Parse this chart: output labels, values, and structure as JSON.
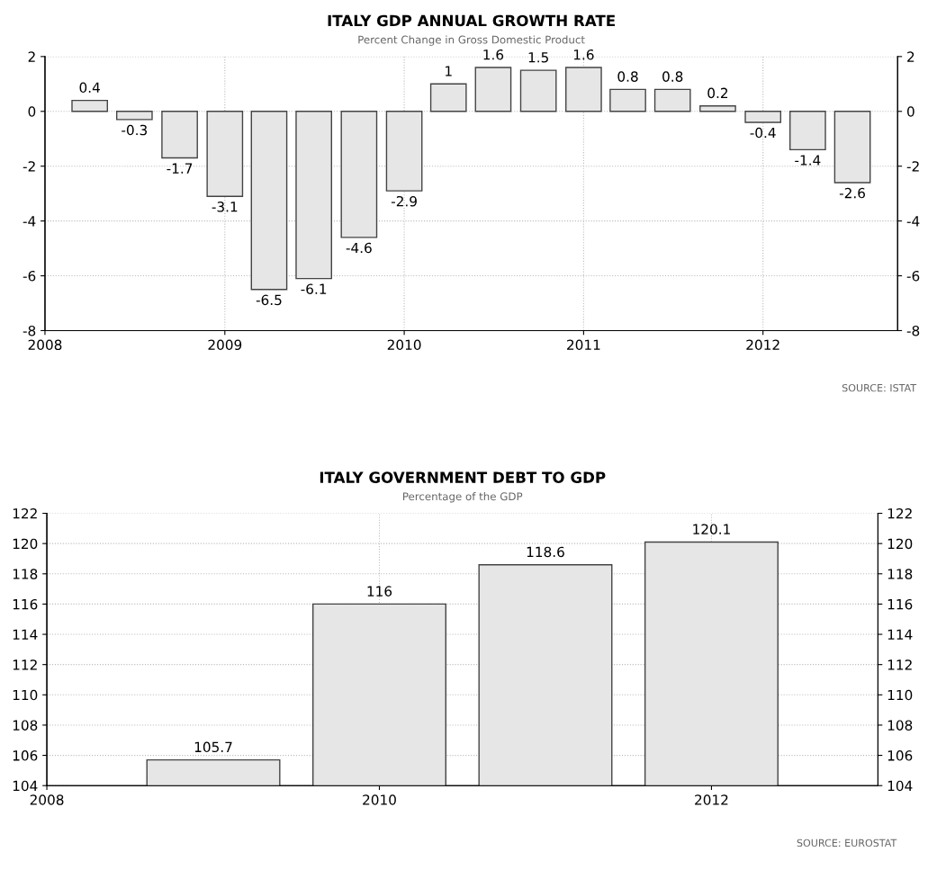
{
  "chart_data": [
    {
      "type": "bar",
      "title": "ITALY GDP ANNUAL GROWTH RATE",
      "subtitle": "Percent Change in Gross Domestic Product",
      "x": [
        "2008-04-01",
        "2008-07-01",
        "2008-10-01",
        "2009-01-01",
        "2009-04-01",
        "2009-07-01",
        "2009-10-01",
        "2010-01-01",
        "2010-04-01",
        "2010-07-01",
        "2010-10-01",
        "2011-01-01",
        "2011-04-01",
        "2011-07-01",
        "2011-10-01",
        "2012-01-01",
        "2012-04-01",
        "2012-07-01"
      ],
      "values": [
        0.4,
        -0.3,
        -1.7,
        -3.1,
        -6.5,
        -6.1,
        -4.6,
        -2.9,
        1,
        1.6,
        1.5,
        1.6,
        0.8,
        0.8,
        0.2,
        -0.4,
        -1.4,
        -2.6
      ],
      "color": "#e6e6e6",
      "data_labels": true,
      "xlim": [
        "2008-01-01",
        "2012-10-01"
      ],
      "xticks": [
        {
          "value": "2008-01-01",
          "label": "2008"
        },
        {
          "value": "2009-01-01",
          "label": "2009"
        },
        {
          "value": "2010-01-01",
          "label": "2010"
        },
        {
          "value": "2011-01-01",
          "label": "2011"
        },
        {
          "value": "2012-01-01",
          "label": "2012"
        }
      ],
      "ylim": [
        -8,
        2
      ],
      "yticks": [
        -8,
        -6,
        -4,
        -2,
        0,
        2
      ],
      "y2lim": [
        -8,
        2
      ],
      "y2ticks": [
        -8,
        -6,
        -4,
        -2,
        0,
        2
      ],
      "grid": true,
      "annotations": [
        "SOURCE: ISTAT"
      ]
    },
    {
      "type": "bar",
      "title": "ITALY GOVERNMENT DEBT TO GDP",
      "subtitle": "Percentage of the GDP",
      "x": [
        "2009",
        "2010",
        "2011",
        "2012"
      ],
      "values": [
        105.7,
        116,
        118.6,
        120.1
      ],
      "color": "#e6e6e6",
      "data_labels": true,
      "xlim": [
        "2008",
        "2013"
      ],
      "xticks": [
        {
          "value": "2008",
          "label": "2008"
        },
        {
          "value": "2010",
          "label": "2010"
        },
        {
          "value": "2012",
          "label": "2012"
        }
      ],
      "ylim": [
        104,
        122
      ],
      "yticks": [
        104,
        106,
        108,
        110,
        112,
        114,
        116,
        118,
        120,
        122
      ],
      "y2lim": [
        104,
        122
      ],
      "y2ticks": [
        104,
        106,
        108,
        110,
        112,
        114,
        116,
        118,
        120,
        122
      ],
      "grid": true,
      "annotations": [
        "SOURCE: EUROSTAT"
      ]
    }
  ]
}
